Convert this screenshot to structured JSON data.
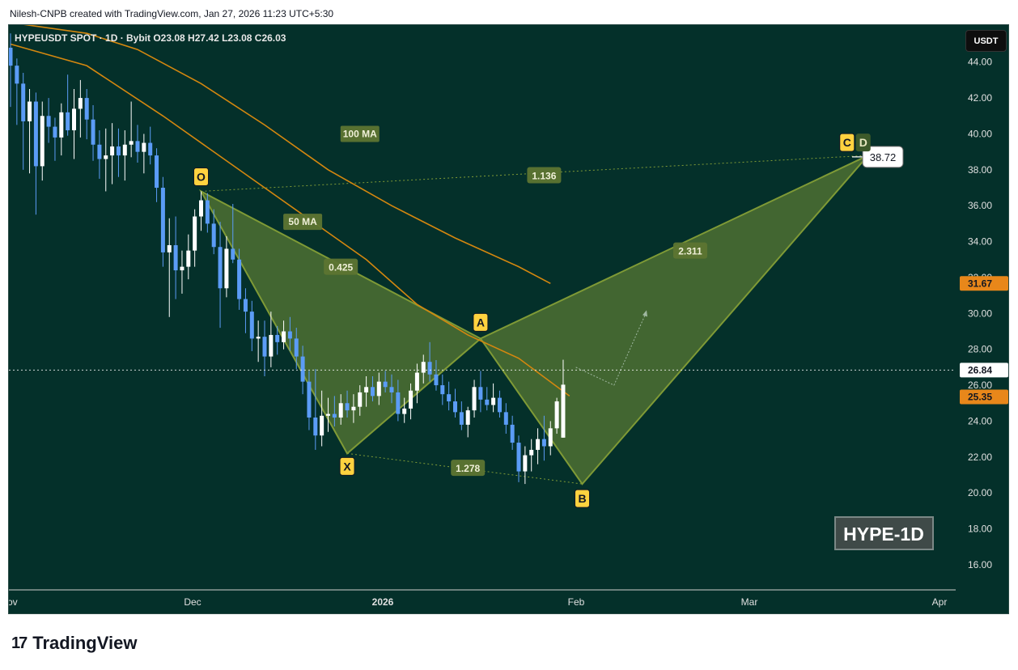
{
  "header": {
    "attribution": "Nilesh-CNPB created with TradingView.com, Jan 27, 2026 11:23 UTC+5:30"
  },
  "symbol": {
    "line": "HYPEUSDT SPOT · 1D · Bybit   O23.08  H27.42  L23.08  C26.03"
  },
  "currency_label": "USDT",
  "watermark": "HYPE-1D",
  "branding": {
    "logo_text": "TradingView",
    "logo_mark": "17"
  },
  "colors": {
    "background": "#04302a",
    "bull": "#ffffff",
    "bear": "#5b9cf6",
    "ma": "#d4870f",
    "pattern_fill": "#8fa83a",
    "pattern_stroke": "#7f9a36",
    "label_yellow": "#ffd23f"
  },
  "chart_data": {
    "type": "candlestick",
    "price_axis": {
      "min": 14.6,
      "max": 45.7,
      "ticks": [
        16,
        18,
        20,
        22,
        24,
        26,
        28,
        30,
        32,
        34,
        36,
        38,
        40,
        42,
        44
      ],
      "tick_labels": [
        "16.00",
        "18.00",
        "20.00",
        "22.00",
        "24.00",
        "26.00",
        "28.00",
        "30.00",
        "32.00",
        "34.00",
        "36.00",
        "38.00",
        "40.00",
        "42.00",
        "44.00"
      ]
    },
    "time_axis": {
      "labels": [
        "Nov",
        "Dec",
        "2026",
        "Feb",
        "Mar",
        "Apr"
      ]
    },
    "candles": [
      {
        "o": 44.8,
        "h": 45.6,
        "l": 41.5,
        "c": 43.8
      },
      {
        "o": 43.8,
        "h": 44.2,
        "l": 40.5,
        "c": 42.8
      },
      {
        "o": 42.8,
        "h": 43.4,
        "l": 38.0,
        "c": 40.7
      },
      {
        "o": 40.7,
        "h": 42.5,
        "l": 37.8,
        "c": 41.8
      },
      {
        "o": 41.8,
        "h": 42.3,
        "l": 35.5,
        "c": 38.2
      },
      {
        "o": 38.2,
        "h": 41.8,
        "l": 37.4,
        "c": 41.0
      },
      {
        "o": 41.0,
        "h": 42.0,
        "l": 39.5,
        "c": 40.4
      },
      {
        "o": 40.4,
        "h": 40.9,
        "l": 38.5,
        "c": 39.8
      },
      {
        "o": 39.8,
        "h": 41.7,
        "l": 38.8,
        "c": 41.2
      },
      {
        "o": 41.2,
        "h": 43.3,
        "l": 39.9,
        "c": 40.2
      },
      {
        "o": 40.2,
        "h": 42.5,
        "l": 38.6,
        "c": 41.4
      },
      {
        "o": 41.4,
        "h": 43.0,
        "l": 39.8,
        "c": 42.0
      },
      {
        "o": 42.0,
        "h": 42.5,
        "l": 39.7,
        "c": 40.8
      },
      {
        "o": 40.8,
        "h": 41.6,
        "l": 38.5,
        "c": 39.4
      },
      {
        "o": 39.4,
        "h": 40.2,
        "l": 37.5,
        "c": 38.6
      },
      {
        "o": 38.6,
        "h": 40.3,
        "l": 36.8,
        "c": 38.8
      },
      {
        "o": 38.8,
        "h": 40.6,
        "l": 37.2,
        "c": 39.3
      },
      {
        "o": 39.3,
        "h": 40.3,
        "l": 37.6,
        "c": 38.8
      },
      {
        "o": 38.8,
        "h": 40.2,
        "l": 37.4,
        "c": 39.4
      },
      {
        "o": 39.4,
        "h": 41.8,
        "l": 38.7,
        "c": 39.6
      },
      {
        "o": 39.6,
        "h": 40.5,
        "l": 38.4,
        "c": 39.0
      },
      {
        "o": 39.0,
        "h": 40.0,
        "l": 37.8,
        "c": 39.5
      },
      {
        "o": 39.5,
        "h": 40.4,
        "l": 38.3,
        "c": 38.8
      },
      {
        "o": 38.8,
        "h": 39.2,
        "l": 36.2,
        "c": 37.0
      },
      {
        "o": 37.0,
        "h": 37.6,
        "l": 32.6,
        "c": 33.4
      },
      {
        "o": 33.4,
        "h": 35.3,
        "l": 29.8,
        "c": 33.8
      },
      {
        "o": 33.8,
        "h": 35.4,
        "l": 30.8,
        "c": 32.4
      },
      {
        "o": 32.4,
        "h": 33.5,
        "l": 31.1,
        "c": 32.6
      },
      {
        "o": 32.6,
        "h": 34.4,
        "l": 31.9,
        "c": 33.5
      },
      {
        "o": 33.5,
        "h": 35.8,
        "l": 32.6,
        "c": 35.4
      },
      {
        "o": 35.4,
        "h": 36.8,
        "l": 34.6,
        "c": 36.3
      },
      {
        "o": 36.3,
        "h": 36.7,
        "l": 34.5,
        "c": 35.0
      },
      {
        "o": 35.0,
        "h": 35.8,
        "l": 33.3,
        "c": 33.7
      },
      {
        "o": 33.7,
        "h": 35.1,
        "l": 29.2,
        "c": 31.4
      },
      {
        "o": 31.4,
        "h": 34.3,
        "l": 30.9,
        "c": 33.6
      },
      {
        "o": 33.6,
        "h": 36.1,
        "l": 32.8,
        "c": 33.0
      },
      {
        "o": 33.0,
        "h": 33.6,
        "l": 30.2,
        "c": 30.8
      },
      {
        "o": 30.8,
        "h": 31.4,
        "l": 28.9,
        "c": 30.1
      },
      {
        "o": 30.1,
        "h": 30.7,
        "l": 27.9,
        "c": 28.6
      },
      {
        "o": 28.6,
        "h": 29.6,
        "l": 27.3,
        "c": 28.7
      },
      {
        "o": 28.7,
        "h": 29.6,
        "l": 26.5,
        "c": 27.6
      },
      {
        "o": 27.6,
        "h": 30.1,
        "l": 27.0,
        "c": 28.8
      },
      {
        "o": 28.8,
        "h": 29.3,
        "l": 27.7,
        "c": 28.4
      },
      {
        "o": 28.4,
        "h": 29.6,
        "l": 28.0,
        "c": 29.0
      },
      {
        "o": 29.0,
        "h": 29.8,
        "l": 27.9,
        "c": 28.6
      },
      {
        "o": 28.6,
        "h": 29.2,
        "l": 26.9,
        "c": 27.6
      },
      {
        "o": 27.6,
        "h": 28.2,
        "l": 25.5,
        "c": 26.2
      },
      {
        "o": 26.2,
        "h": 26.8,
        "l": 23.5,
        "c": 24.2
      },
      {
        "o": 24.2,
        "h": 26.9,
        "l": 22.4,
        "c": 23.2
      },
      {
        "o": 23.2,
        "h": 25.7,
        "l": 22.6,
        "c": 24.3
      },
      {
        "o": 24.3,
        "h": 25.3,
        "l": 23.4,
        "c": 24.4
      },
      {
        "o": 24.4,
        "h": 25.4,
        "l": 23.7,
        "c": 24.2
      },
      {
        "o": 24.2,
        "h": 25.5,
        "l": 23.8,
        "c": 25.0
      },
      {
        "o": 25.0,
        "h": 25.7,
        "l": 24.2,
        "c": 24.6
      },
      {
        "o": 24.6,
        "h": 25.5,
        "l": 23.9,
        "c": 24.8
      },
      {
        "o": 24.8,
        "h": 26.0,
        "l": 24.3,
        "c": 25.6
      },
      {
        "o": 25.6,
        "h": 26.5,
        "l": 24.8,
        "c": 25.9
      },
      {
        "o": 25.9,
        "h": 26.5,
        "l": 25.1,
        "c": 25.4
      },
      {
        "o": 25.4,
        "h": 26.7,
        "l": 24.9,
        "c": 26.2
      },
      {
        "o": 26.2,
        "h": 26.8,
        "l": 25.6,
        "c": 25.9
      },
      {
        "o": 25.9,
        "h": 26.6,
        "l": 25.0,
        "c": 25.6
      },
      {
        "o": 25.6,
        "h": 26.3,
        "l": 24.0,
        "c": 24.4
      },
      {
        "o": 24.4,
        "h": 25.3,
        "l": 23.9,
        "c": 24.7
      },
      {
        "o": 24.7,
        "h": 26.1,
        "l": 24.1,
        "c": 25.7
      },
      {
        "o": 25.7,
        "h": 27.2,
        "l": 25.0,
        "c": 26.7
      },
      {
        "o": 26.7,
        "h": 27.7,
        "l": 26.1,
        "c": 27.3
      },
      {
        "o": 27.3,
        "h": 28.4,
        "l": 26.2,
        "c": 26.6
      },
      {
        "o": 26.6,
        "h": 27.4,
        "l": 25.7,
        "c": 26.0
      },
      {
        "o": 26.0,
        "h": 26.6,
        "l": 24.9,
        "c": 25.5
      },
      {
        "o": 25.5,
        "h": 26.2,
        "l": 24.6,
        "c": 25.1
      },
      {
        "o": 25.1,
        "h": 25.8,
        "l": 24.2,
        "c": 24.5
      },
      {
        "o": 24.5,
        "h": 25.1,
        "l": 23.5,
        "c": 23.8
      },
      {
        "o": 23.8,
        "h": 24.8,
        "l": 23.1,
        "c": 24.6
      },
      {
        "o": 24.6,
        "h": 26.3,
        "l": 24.2,
        "c": 25.9
      },
      {
        "o": 25.9,
        "h": 26.8,
        "l": 24.5,
        "c": 25.2
      },
      {
        "o": 25.2,
        "h": 25.9,
        "l": 24.6,
        "c": 24.9
      },
      {
        "o": 24.9,
        "h": 26.1,
        "l": 24.5,
        "c": 25.3
      },
      {
        "o": 25.3,
        "h": 25.7,
        "l": 24.2,
        "c": 24.5
      },
      {
        "o": 24.5,
        "h": 25.0,
        "l": 23.3,
        "c": 23.8
      },
      {
        "o": 23.8,
        "h": 24.3,
        "l": 22.4,
        "c": 22.8
      },
      {
        "o": 22.8,
        "h": 23.2,
        "l": 20.6,
        "c": 21.2
      },
      {
        "o": 21.2,
        "h": 22.6,
        "l": 20.5,
        "c": 22.1
      },
      {
        "o": 22.1,
        "h": 23.0,
        "l": 21.2,
        "c": 22.4
      },
      {
        "o": 22.4,
        "h": 23.6,
        "l": 21.6,
        "c": 23.0
      },
      {
        "o": 23.0,
        "h": 24.3,
        "l": 21.8,
        "c": 22.6
      },
      {
        "o": 22.6,
        "h": 24.0,
        "l": 22.1,
        "c": 23.6
      },
      {
        "o": 23.6,
        "h": 25.3,
        "l": 23.3,
        "c": 25.1
      },
      {
        "o": 23.08,
        "h": 27.42,
        "l": 23.08,
        "c": 26.03
      }
    ],
    "ma_50": {
      "label": "50 MA",
      "last_value": "25.35"
    },
    "ma_100": {
      "label": "100 MA",
      "last_value": "31.67"
    },
    "ma_50_points": [
      [
        0,
        45.0
      ],
      [
        12,
        43.8
      ],
      [
        24,
        41.0
      ],
      [
        32,
        39.0
      ],
      [
        40,
        37.0
      ],
      [
        48,
        35.0
      ],
      [
        56,
        33.0
      ],
      [
        64,
        30.5
      ],
      [
        72,
        28.8
      ],
      [
        80,
        27.5
      ],
      [
        88,
        25.4
      ]
    ],
    "ma_100_points": [
      [
        0,
        46.2
      ],
      [
        12,
        45.6
      ],
      [
        20,
        44.7
      ],
      [
        30,
        42.8
      ],
      [
        40,
        40.5
      ],
      [
        50,
        38.0
      ],
      [
        60,
        36.0
      ],
      [
        70,
        34.2
      ],
      [
        80,
        32.6
      ],
      [
        85,
        31.67
      ]
    ],
    "current_price": "26.84",
    "target_price": "38.72",
    "pattern_points": [
      {
        "label": "O",
        "day": 30,
        "price": 36.8
      },
      {
        "label": "X",
        "day": 53,
        "price": 22.2
      },
      {
        "label": "A",
        "day": 74,
        "price": 28.6
      },
      {
        "label": "B",
        "day": 90,
        "price": 20.5
      },
      {
        "label": "C",
        "day": 135,
        "price": 38.8
      },
      {
        "label": "D",
        "day": 135,
        "price": 38.8
      }
    ],
    "ratios": [
      {
        "text": "0.425",
        "day": 52,
        "price": 32.6
      },
      {
        "text": "1.278",
        "day": 72,
        "price": 21.4
      },
      {
        "text": "2.311",
        "day": 107,
        "price": 33.5
      },
      {
        "text": "1.136",
        "day": 84,
        "price": 37.7
      }
    ]
  }
}
